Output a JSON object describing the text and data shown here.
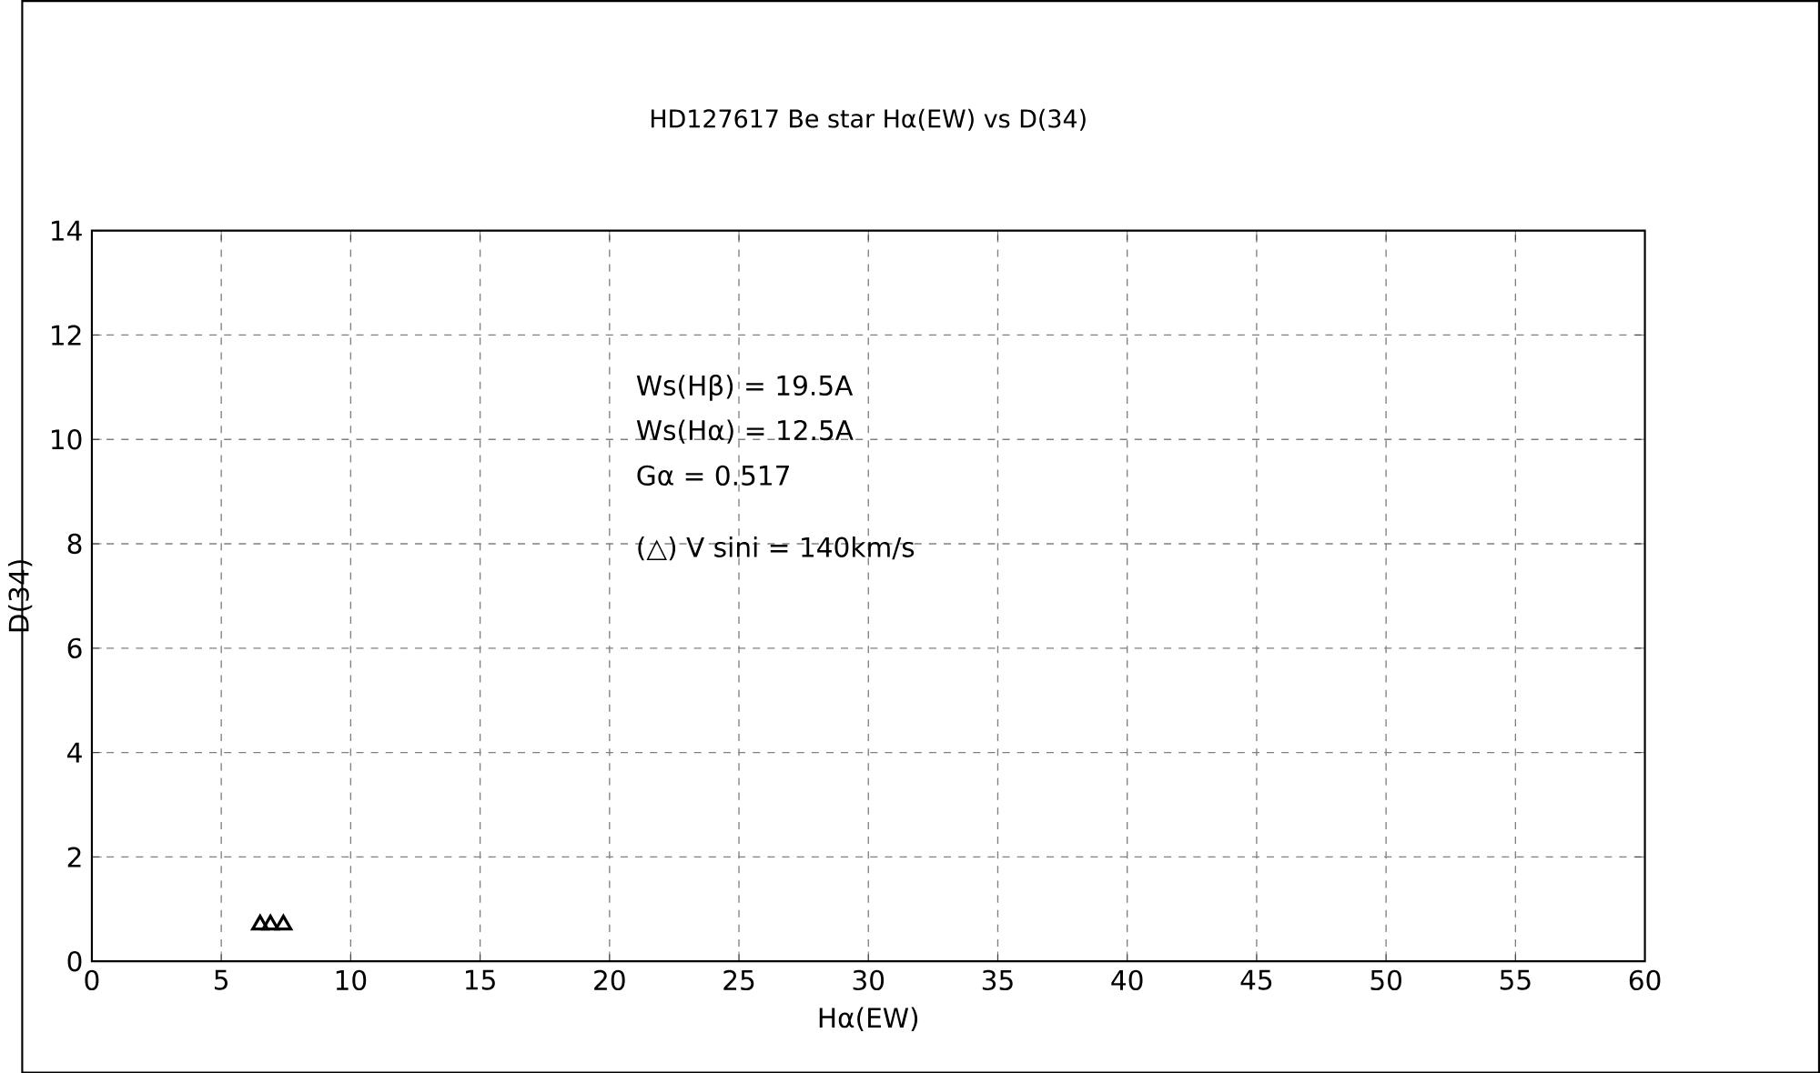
{
  "chart_data": {
    "type": "scatter",
    "title": "HD127617    Be star    Hα(EW) vs D(34)",
    "xlabel": "Hα(EW)",
    "ylabel": "D(34)",
    "x": [
      6.5,
      6.9,
      7.4
    ],
    "values": [
      0.7,
      0.7,
      0.7
    ],
    "color": "#000000",
    "marker": "triangle",
    "xlim": [
      0,
      60
    ],
    "ylim": [
      0,
      14
    ],
    "xticks": [
      0,
      5,
      10,
      15,
      20,
      25,
      30,
      35,
      40,
      45,
      50,
      55,
      60
    ],
    "yticks": [
      0,
      2,
      4,
      6,
      8,
      10,
      12,
      14
    ],
    "grid": true,
    "annotations": [
      "Ws(Hβ) = 19.5A",
      "Ws(Hα) = 12.5A",
      "Gα = 0.517",
      "(△) V sini = 140km/s"
    ]
  }
}
